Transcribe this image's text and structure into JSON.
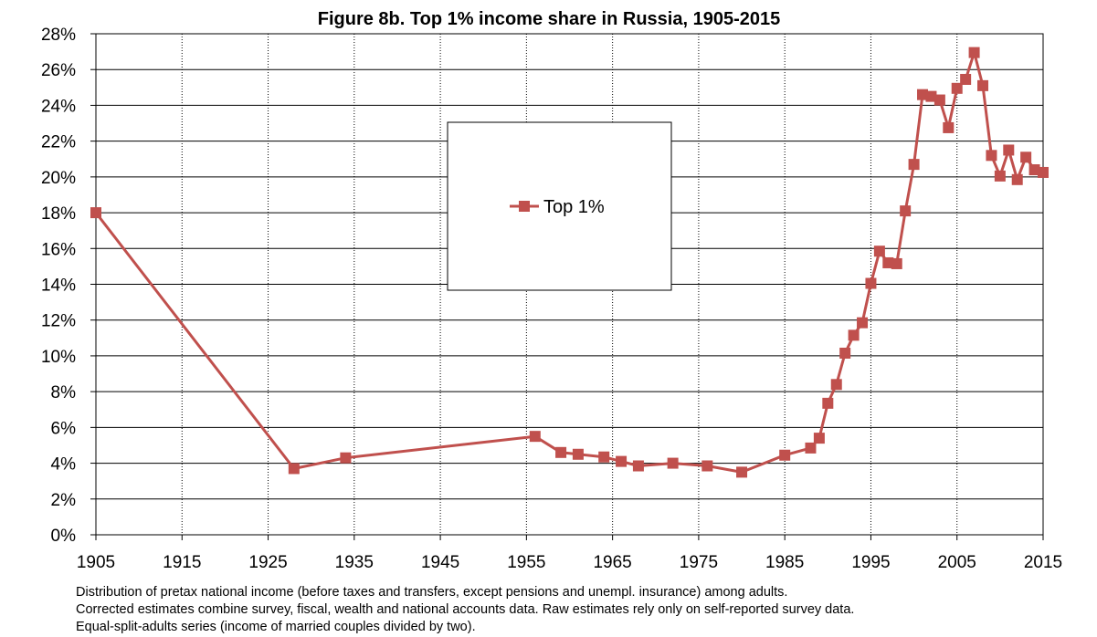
{
  "chart_data": {
    "type": "line",
    "title": "Figure 8b. Top 1% income share in Russia, 1905-2015",
    "xlabel": "",
    "ylabel": "",
    "xlim": [
      1905,
      2015
    ],
    "ylim": [
      0,
      28
    ],
    "x_ticks": [
      "1905",
      "1915",
      "1925",
      "1935",
      "1945",
      "1955",
      "1965",
      "1975",
      "1985",
      "1995",
      "2005",
      "2015"
    ],
    "y_ticks": [
      "0%",
      "2%",
      "4%",
      "6%",
      "8%",
      "10%",
      "12%",
      "14%",
      "16%",
      "18%",
      "20%",
      "22%",
      "24%",
      "26%",
      "28%"
    ],
    "grid": true,
    "legend_position": "upper-center",
    "series": [
      {
        "name": "Top 1%",
        "color": "#c0504d",
        "marker": "square",
        "points": [
          [
            1905,
            18.0
          ],
          [
            1928,
            3.7
          ],
          [
            1934,
            4.3
          ],
          [
            1956,
            5.5
          ],
          [
            1959,
            4.6
          ],
          [
            1961,
            4.5
          ],
          [
            1964,
            4.35
          ],
          [
            1966,
            4.1
          ],
          [
            1968,
            3.85
          ],
          [
            1972,
            4.0
          ],
          [
            1976,
            3.85
          ],
          [
            1980,
            3.5
          ],
          [
            1985,
            4.45
          ],
          [
            1988,
            4.85
          ],
          [
            1989,
            5.4
          ],
          [
            1990,
            7.35
          ],
          [
            1991,
            8.4
          ],
          [
            1992,
            10.15
          ],
          [
            1993,
            11.15
          ],
          [
            1994,
            11.85
          ],
          [
            1995,
            14.05
          ],
          [
            1996,
            15.85
          ],
          [
            1997,
            15.2
          ],
          [
            1998,
            15.15
          ],
          [
            1999,
            18.1
          ],
          [
            2000,
            20.7
          ],
          [
            2001,
            24.6
          ],
          [
            2002,
            24.5
          ],
          [
            2003,
            24.3
          ],
          [
            2004,
            22.75
          ],
          [
            2005,
            24.95
          ],
          [
            2006,
            25.45
          ],
          [
            2007,
            26.95
          ],
          [
            2008,
            25.1
          ],
          [
            2009,
            21.2
          ],
          [
            2010,
            20.05
          ],
          [
            2011,
            21.5
          ],
          [
            2012,
            19.85
          ],
          [
            2013,
            21.1
          ],
          [
            2014,
            20.4
          ],
          [
            2015,
            20.25
          ]
        ]
      }
    ]
  },
  "notes": [
    "Distribution of pretax national income (before taxes and transfers, except pensions and unempl. insurance) among adults.",
    "Corrected estimates combine survey, fiscal, wealth and national accounts data. Raw estimates rely only on self-reported survey data.",
    "Equal-split-adults series (income of married couples divided by two)."
  ]
}
